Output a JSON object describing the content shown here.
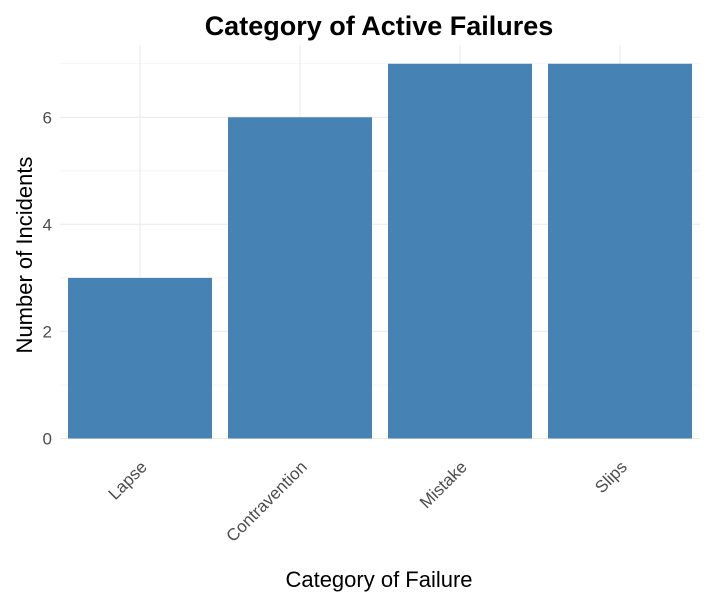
{
  "chart_data": {
    "type": "bar",
    "title": "Category of Active Failures",
    "xlabel": "Category of Failure",
    "ylabel": "Number of Incidents",
    "categories": [
      "Lapse",
      "Contravention",
      "Mistake",
      "Slips"
    ],
    "values": [
      3,
      6,
      7,
      7
    ],
    "ylim": [
      0,
      7.35
    ],
    "yticks": [
      "0",
      "2",
      "4",
      "6"
    ],
    "bar_color": "#4682B4",
    "grid": true,
    "legend": "none",
    "x_tick_rotation": "45 degrees"
  }
}
